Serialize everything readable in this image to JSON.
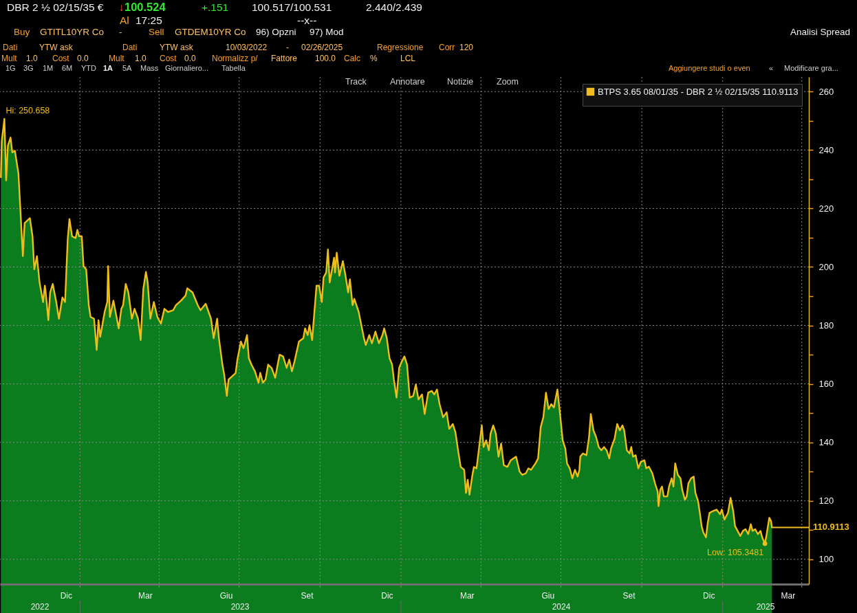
{
  "chart_data": {
    "type": "area",
    "x": [
      "2022-10-03",
      "2022-10-04",
      "2022-10-07",
      "2022-10-09",
      "2022-10-11",
      "2022-10-14",
      "2022-10-16",
      "2022-10-19",
      "2022-10-23",
      "2022-10-25",
      "2022-10-28",
      "2022-10-30",
      "2022-11-05",
      "2022-11-08",
      "2022-11-10",
      "2022-11-13",
      "2022-11-16",
      "2022-11-20",
      "2022-11-22",
      "2022-11-23",
      "2022-11-26",
      "2022-11-28",
      "2022-12-01",
      "2022-12-05",
      "2022-12-08",
      "2022-12-12",
      "2022-12-15",
      "2022-12-18",
      "2022-12-20",
      "2022-12-23",
      "2022-12-27",
      "2022-12-29",
      "2022-12-31",
      "2023-01-03",
      "2023-01-05",
      "2023-01-08",
      "2023-01-11",
      "2023-01-13",
      "2023-01-17",
      "2023-01-20",
      "2023-01-22",
      "2023-01-24",
      "2023-01-29",
      "2023-02-01",
      "2023-02-02",
      "2023-02-04",
      "2023-02-08",
      "2023-02-14",
      "2023-02-17",
      "2023-02-19",
      "2023-02-22",
      "2023-02-25",
      "2023-03-01",
      "2023-03-04",
      "2023-03-08",
      "2023-03-11",
      "2023-03-14",
      "2023-03-17",
      "2023-03-19",
      "2023-03-22",
      "2023-03-26",
      "2023-03-30",
      "2023-04-03",
      "2023-04-07",
      "2023-04-11",
      "2023-04-17",
      "2023-04-20",
      "2023-04-26",
      "2023-05-01",
      "2023-05-03",
      "2023-05-09",
      "2023-05-15",
      "2023-05-18",
      "2023-05-24",
      "2023-05-30",
      "2023-05-31",
      "2023-06-02",
      "2023-06-06",
      "2023-06-08",
      "2023-06-12",
      "2023-06-14",
      "2023-06-17",
      "2023-06-19",
      "2023-06-23",
      "2023-06-27",
      "2023-06-29",
      "2023-07-03",
      "2023-07-06",
      "2023-07-10",
      "2023-07-12",
      "2023-07-15",
      "2023-07-19",
      "2023-07-23",
      "2023-07-25",
      "2023-07-28",
      "2023-07-31",
      "2023-08-03",
      "2023-08-07",
      "2023-08-11",
      "2023-08-16",
      "2023-08-20",
      "2023-08-24",
      "2023-08-27",
      "2023-08-30",
      "2023-09-02",
      "2023-09-07",
      "2023-09-12",
      "2023-09-14",
      "2023-09-17",
      "2023-09-19",
      "2023-09-22",
      "2023-09-27",
      "2023-09-30",
      "2023-10-03",
      "2023-10-05",
      "2023-10-08",
      "2023-10-10",
      "2023-10-12",
      "2023-10-17",
      "2023-10-18",
      "2023-10-20",
      "2023-10-23",
      "2023-10-27",
      "2023-10-30",
      "2023-11-02",
      "2023-11-04",
      "2023-11-07",
      "2023-11-09",
      "2023-11-14",
      "2023-11-17",
      "2023-11-20",
      "2023-11-22",
      "2023-11-26",
      "2023-11-29",
      "2023-12-03",
      "2023-12-07",
      "2023-12-11",
      "2023-12-13",
      "2023-12-16",
      "2023-12-19",
      "2023-12-22",
      "2023-12-24",
      "2023-12-27",
      "2023-12-30",
      "2024-01-02",
      "2024-01-05",
      "2024-01-08",
      "2024-01-11",
      "2024-01-15",
      "2024-01-18",
      "2024-01-21",
      "2024-01-25",
      "2024-01-28",
      "2024-02-01",
      "2024-02-05",
      "2024-02-08",
      "2024-02-11",
      "2024-02-14",
      "2024-02-18",
      "2024-02-22",
      "2024-02-25",
      "2024-02-29",
      "2024-03-03",
      "2024-03-06",
      "2024-03-09",
      "2024-03-13",
      "2024-03-15",
      "2024-03-17",
      "2024-03-19",
      "2024-03-22",
      "2024-03-24",
      "2024-03-27",
      "2024-03-30",
      "2024-04-02",
      "2024-04-04",
      "2024-04-07",
      "2024-04-10",
      "2024-04-12",
      "2024-04-15",
      "2024-04-18",
      "2024-04-21",
      "2024-04-24",
      "2024-04-27",
      "2024-05-01",
      "2024-05-05",
      "2024-05-08",
      "2024-05-11",
      "2024-05-15",
      "2024-05-18",
      "2024-05-22",
      "2024-05-25",
      "2024-05-28",
      "2024-06-02",
      "2024-06-05",
      "2024-06-08",
      "2024-06-11",
      "2024-06-14",
      "2024-06-17",
      "2024-06-20",
      "2024-06-23",
      "2024-06-27",
      "2024-06-30",
      "2024-07-03",
      "2024-07-06",
      "2024-07-08",
      "2024-07-11",
      "2024-07-14",
      "2024-07-17",
      "2024-07-20",
      "2024-07-22",
      "2024-07-23",
      "2024-07-26",
      "2024-07-30",
      "2024-08-02",
      "2024-08-04",
      "2024-08-07",
      "2024-08-10",
      "2024-08-13",
      "2024-08-16",
      "2024-08-19",
      "2024-08-22",
      "2024-08-25",
      "2024-08-27",
      "2024-08-31",
      "2024-09-03",
      "2024-09-06",
      "2024-09-09",
      "2024-09-11",
      "2024-09-14",
      "2024-09-17",
      "2024-09-19",
      "2024-09-21",
      "2024-09-24",
      "2024-09-27",
      "2024-09-30",
      "2024-10-04",
      "2024-10-06",
      "2024-10-09",
      "2024-10-13",
      "2024-10-16",
      "2024-10-19",
      "2024-10-20",
      "2024-10-22",
      "2024-10-24",
      "2024-10-26",
      "2024-10-30",
      "2024-11-01",
      "2024-11-04",
      "2024-11-06",
      "2024-11-08",
      "2024-11-11",
      "2024-11-14",
      "2024-11-16",
      "2024-11-19",
      "2024-11-21",
      "2024-11-23",
      "2024-11-26",
      "2024-11-29",
      "2024-12-01",
      "2024-12-04",
      "2024-12-06",
      "2024-12-08",
      "2024-12-10",
      "2024-12-13",
      "2024-12-15",
      "2024-12-17",
      "2024-12-21",
      "2024-12-25",
      "2024-12-29",
      "2024-12-31",
      "2025-01-03",
      "2025-01-07",
      "2025-01-10",
      "2025-01-13",
      "2025-01-15",
      "2025-01-18",
      "2025-01-21",
      "2025-01-24",
      "2025-01-27",
      "2025-01-30",
      "2025-02-02",
      "2025-02-04",
      "2025-02-07",
      "2025-02-10",
      "2025-02-13",
      "2025-02-15",
      "2025-02-18",
      "2025-02-20",
      "2025-02-23",
      "2025-02-25",
      "2025-02-26"
    ],
    "series": [
      {
        "color": "#0b7d1f",
        "values": [
          230.7,
          243.1,
          250.658,
          229.6,
          241.5,
          244.3,
          239.2,
          239.7,
          231.9,
          220.6,
          203.7,
          215.0,
          216.7,
          210.5,
          199.2,
          203.7,
          194.7,
          188.0,
          193.6,
          191.3,
          181.8,
          191.3,
          194.2,
          188.0,
          182.3,
          189.6,
          188.0,
          209.4,
          216.4,
          210.5,
          209.9,
          212.7,
          210.5,
          210.5,
          200.3,
          199.2,
          186.9,
          182.9,
          182.3,
          171.6,
          181.8,
          176.1,
          184.6,
          188.0,
          200.3,
          182.9,
          188.5,
          179.0,
          185.7,
          186.9,
          194.2,
          191.3,
          182.3,
          185.7,
          182.3,
          175.0,
          192.5,
          198.3,
          194.7,
          182.3,
          188.0,
          182.9,
          180.6,
          185.7,
          184.6,
          185.2,
          186.9,
          188.5,
          190.2,
          192.7,
          191.3,
          186.9,
          185.2,
          187.4,
          182.3,
          180.1,
          175.6,
          182.3,
          175.6,
          166.6,
          163.2,
          155.9,
          161.5,
          162.6,
          163.7,
          168.3,
          174.5,
          172.2,
          176.7,
          168.8,
          166.6,
          164.3,
          160.4,
          163.8,
          160.4,
          161.5,
          166.6,
          165.4,
          162.1,
          170.0,
          169.4,
          165.5,
          168.3,
          164.3,
          167.7,
          174.5,
          175.6,
          179.0,
          176.7,
          180.1,
          175.0,
          193.6,
          193.6,
          188.0,
          196.4,
          198.1,
          206.0,
          194.7,
          203.2,
          198.1,
          204.9,
          197.0,
          202.0,
          197.0,
          191.3,
          195.8,
          186.9,
          189.1,
          184.6,
          180.1,
          175.6,
          173.3,
          176.7,
          173.9,
          177.9,
          173.9,
          176.7,
          179.0,
          175.6,
          168.8,
          166.6,
          161.5,
          155.3,
          165.5,
          167.7,
          169.4,
          166.6,
          155.3,
          155.9,
          159.8,
          154.7,
          156.4,
          149.7,
          157.0,
          157.6,
          156.4,
          158.1,
          153.1,
          148.6,
          150.3,
          144.6,
          146.3,
          143.5,
          137.3,
          131.6,
          130.6,
          122.7,
          127.2,
          122.1,
          128.3,
          131.6,
          131.1,
          138.4,
          145.8,
          138.4,
          140.7,
          137.3,
          143.0,
          145.8,
          143.0,
          135.1,
          139.6,
          132.2,
          131.6,
          133.9,
          134.5,
          135.1,
          130.0,
          128.9,
          129.4,
          131.1,
          130.6,
          132.8,
          134.5,
          145.2,
          148.6,
          157.0,
          151.4,
          153.1,
          151.9,
          158.1,
          149.7,
          140.7,
          137.9,
          132.8,
          131.1,
          127.7,
          130.6,
          128.3,
          130.6,
          135.1,
          136.2,
          135.6,
          141.8,
          149.7,
          144.1,
          141.8,
          138.4,
          137.3,
          138.4,
          137.3,
          134.5,
          137.9,
          141.2,
          146.3,
          144.1,
          145.8,
          144.1,
          137.3,
          136.2,
          138.4,
          135.1,
          135.6,
          131.1,
          133.4,
          133.9,
          131.1,
          131.7,
          129.4,
          126.0,
          123.2,
          118.2,
          123.8,
          124.9,
          121.5,
          121.5,
          124.9,
          127.7,
          124.9,
          132.8,
          128.9,
          127.7,
          123.8,
          120.4,
          121.5,
          126.0,
          127.7,
          128.3,
          122.7,
          119.9,
          115.9,
          111.4,
          109.2,
          107.5,
          112.5,
          115.9,
          116.5,
          117.0,
          115.4,
          117.0,
          113.6,
          115.9,
          121.0,
          116.5,
          111.4,
          109.7,
          108.0,
          109.7,
          110.3,
          108.6,
          112.0,
          109.7,
          110.3,
          108.6,
          109.7,
          107.5,
          105.3481,
          108.6,
          114.2,
          113.1,
          110.9113
        ]
      },
      {
        "type": "line",
        "name": "BTPS 3.65 08/01/35 - DBR 2 ½ 02/15/35 110.9113",
        "color": "#efbe1e",
        "values": [
          230.7,
          243.1,
          250.658,
          229.6,
          241.5,
          244.3,
          239.2,
          239.7,
          231.9,
          220.6,
          203.7,
          215.0,
          216.7,
          210.5,
          199.2,
          203.7,
          194.7,
          188.0,
          193.6,
          191.3,
          181.8,
          191.3,
          194.2,
          188.0,
          182.3,
          189.6,
          188.0,
          209.4,
          216.4,
          210.5,
          209.9,
          212.7,
          210.5,
          210.5,
          200.3,
          199.2,
          186.9,
          182.9,
          182.3,
          171.6,
          181.8,
          176.1,
          184.6,
          188.0,
          200.3,
          182.9,
          188.5,
          179.0,
          185.7,
          186.9,
          194.2,
          191.3,
          182.3,
          185.7,
          182.3,
          175.0,
          192.5,
          198.3,
          194.7,
          182.3,
          188.0,
          182.9,
          180.6,
          185.7,
          184.6,
          185.2,
          186.9,
          188.5,
          190.2,
          192.7,
          191.3,
          186.9,
          185.2,
          187.4,
          182.3,
          180.1,
          175.6,
          182.3,
          175.6,
          166.6,
          163.2,
          155.9,
          161.5,
          162.6,
          163.7,
          168.3,
          174.5,
          172.2,
          176.7,
          168.8,
          166.6,
          164.3,
          160.4,
          163.8,
          160.4,
          161.5,
          166.6,
          165.4,
          162.1,
          170.0,
          169.4,
          165.5,
          168.3,
          164.3,
          167.7,
          174.5,
          175.6,
          179.0,
          176.7,
          180.1,
          175.0,
          193.6,
          193.6,
          188.0,
          196.4,
          198.1,
          206.0,
          194.7,
          203.2,
          198.1,
          204.9,
          197.0,
          202.0,
          197.0,
          191.3,
          195.8,
          186.9,
          189.1,
          184.6,
          180.1,
          175.6,
          173.3,
          176.7,
          173.9,
          177.9,
          173.9,
          176.7,
          179.0,
          175.6,
          168.8,
          166.6,
          161.5,
          155.3,
          165.5,
          167.7,
          169.4,
          166.6,
          155.3,
          155.9,
          159.8,
          154.7,
          156.4,
          149.7,
          157.0,
          157.6,
          156.4,
          158.1,
          153.1,
          148.6,
          150.3,
          144.6,
          146.3,
          143.5,
          137.3,
          131.6,
          130.6,
          122.7,
          127.2,
          122.1,
          128.3,
          131.6,
          131.1,
          138.4,
          145.8,
          138.4,
          140.7,
          137.3,
          143.0,
          145.8,
          143.0,
          135.1,
          139.6,
          132.2,
          131.6,
          133.9,
          134.5,
          135.1,
          130.0,
          128.9,
          129.4,
          131.1,
          130.6,
          132.8,
          134.5,
          145.2,
          148.6,
          157.0,
          151.4,
          153.1,
          151.9,
          158.1,
          149.7,
          140.7,
          137.9,
          132.8,
          131.1,
          127.7,
          130.6,
          128.3,
          130.6,
          135.1,
          136.2,
          135.6,
          141.8,
          149.7,
          144.1,
          141.8,
          138.4,
          137.3,
          138.4,
          137.3,
          134.5,
          137.9,
          141.2,
          146.3,
          144.1,
          145.8,
          144.1,
          137.3,
          136.2,
          138.4,
          135.1,
          135.6,
          131.1,
          133.4,
          133.9,
          131.1,
          131.7,
          129.4,
          126.0,
          123.2,
          118.2,
          123.8,
          124.9,
          121.5,
          121.5,
          124.9,
          127.7,
          124.9,
          132.8,
          128.9,
          127.7,
          123.8,
          120.4,
          121.5,
          126.0,
          127.7,
          128.3,
          122.7,
          119.9,
          115.9,
          111.4,
          109.2,
          107.5,
          112.5,
          115.9,
          116.5,
          117.0,
          115.4,
          117.0,
          113.6,
          115.9,
          121.0,
          116.5,
          111.4,
          109.7,
          108.0,
          109.7,
          110.3,
          108.6,
          112.0,
          109.7,
          110.3,
          108.6,
          109.7,
          107.5,
          105.3481,
          108.6,
          114.2,
          113.1,
          110.9113
        ]
      },
      {
        "type": "scatter",
        "color": "#efbe1e",
        "x": [
          "2025-02-18"
        ],
        "values": [
          105.3481
        ]
      }
    ],
    "xlim": [
      "2022-10-02",
      "2025-04-09"
    ],
    "xticks": [
      {
        "value": "2022-12-16",
        "label": "Dic"
      },
      {
        "value": "2023-03-16",
        "label": "Mar"
      },
      {
        "value": "2023-06-16",
        "label": "Giu"
      },
      {
        "value": "2023-09-16",
        "label": "Set"
      },
      {
        "value": "2023-12-16",
        "label": "Dic"
      },
      {
        "value": "2024-03-16",
        "label": "Mar"
      },
      {
        "value": "2024-06-16",
        "label": "Giu"
      },
      {
        "value": "2024-09-16",
        "label": "Set"
      },
      {
        "value": "2024-12-16",
        "label": "Dic"
      },
      {
        "value": "2025-03-16",
        "label": "Mar"
      },
      {
        "value": "2023-01-01",
        "label": null
      },
      {
        "value": "2023-04-01",
        "label": null
      },
      {
        "value": "2023-07-01",
        "label": null
      },
      {
        "value": "2023-10-01",
        "label": null
      },
      {
        "value": "2024-01-01",
        "label": null
      },
      {
        "value": "2024-04-01",
        "label": null
      },
      {
        "value": "2024-07-01",
        "label": null
      },
      {
        "value": "2024-10-01",
        "label": null
      },
      {
        "value": "2025-01-01",
        "label": null
      },
      {
        "value": "2025-04-01",
        "label": null
      }
    ],
    "ylim": [
      91.5,
      265
    ],
    "yticks": [
      100,
      {
        "value": 110,
        "label": null
      },
      120,
      {
        "value": 130,
        "label": null
      },
      140,
      {
        "value": 150,
        "label": null
      },
      160,
      {
        "value": 170,
        "label": null
      },
      180,
      {
        "value": 190,
        "label": null
      },
      200,
      {
        "value": 210,
        "label": null
      },
      220,
      {
        "value": 230,
        "label": null
      },
      240,
      {
        "value": 250,
        "label": null
      },
      260
    ],
    "grid": true,
    "legend": "top right",
    "ref_lines": [
      {
        "axis": "y",
        "value": 110.9113,
        "label": "110.9113",
        "color": "#efbe1e"
      }
    ],
    "annotations": [
      "DBR 2 ½ 02/15/35 €",
      "↓",
      "100.524",
      "+.151",
      "100.517/100.531",
      "2.440/2.439",
      "Al",
      "17:25",
      "--x--",
      "Buy",
      "GTITL10YR Co",
      "-",
      "Sell",
      "GTDEM10YR Co",
      "96) Opzni",
      "97) Mod",
      "Analisi Spread",
      "Dati",
      "YTW ask",
      "Dati",
      "YTW ask",
      "10/03/2022",
      "-",
      "02/26/2025",
      "Regressione",
      "Corr",
      "120",
      "Mult",
      "1.0",
      "Cost",
      "0.0",
      "Mult",
      "1.0",
      "Cost",
      "0.0",
      "Normalizz p/",
      "Fattore",
      "100.0",
      "Calc",
      "%",
      "LCL",
      "1G",
      "3G",
      "1M",
      "6M",
      "YTD",
      "1A",
      "5A",
      "Mass",
      "Giornaliero...",
      "Tabella",
      "Aggiungere studi o even",
      "«",
      "Modificare gra...",
      "Track",
      "Annotare",
      "Notizie",
      "Zoom",
      "2022",
      "2023",
      "2024",
      "2025",
      {
        "text": "Hi: 250.658",
        "x": "2022-10-07",
        "y": 250.658
      },
      {
        "text": "Low: 105.3481",
        "x": "2025-02-18",
        "y": 105.3481
      }
    ]
  }
}
